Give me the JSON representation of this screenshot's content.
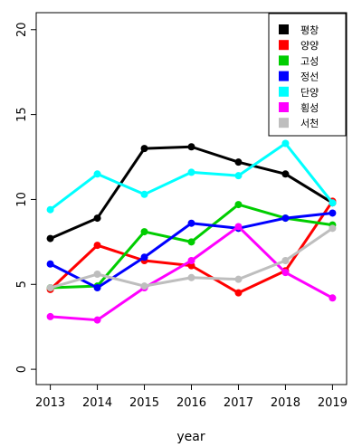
{
  "chart_data": {
    "type": "line",
    "title": "",
    "xlabel": "year",
    "ylabel": "",
    "x": [
      2013,
      2014,
      2015,
      2016,
      2017,
      2018,
      2019
    ],
    "xlim": [
      2012.7,
      2019.3
    ],
    "ylim": [
      -0.9,
      21.0
    ],
    "yticks": [
      0,
      5,
      10,
      15,
      20
    ],
    "grid": false,
    "legend_position": "top-right",
    "series": [
      {
        "name": "평창",
        "color": "#000000",
        "values": [
          7.7,
          8.9,
          13.0,
          13.1,
          12.2,
          11.5,
          9.8
        ]
      },
      {
        "name": "양양",
        "color": "#ff0000",
        "values": [
          4.7,
          7.3,
          6.4,
          6.1,
          4.5,
          5.8,
          9.9
        ]
      },
      {
        "name": "고성",
        "color": "#00cd00",
        "values": [
          4.8,
          4.9,
          8.1,
          7.5,
          9.7,
          8.9,
          8.5
        ]
      },
      {
        "name": "정선",
        "color": "#0000ff",
        "values": [
          6.2,
          4.8,
          6.6,
          8.6,
          8.3,
          8.9,
          9.2
        ]
      },
      {
        "name": "단양",
        "color": "#00ffff",
        "values": [
          9.4,
          11.5,
          10.3,
          11.6,
          11.4,
          13.3,
          9.8
        ]
      },
      {
        "name": "횡성",
        "color": "#ff00ff",
        "values": [
          3.1,
          2.9,
          4.8,
          6.4,
          8.4,
          5.7,
          4.2
        ]
      },
      {
        "name": "서천",
        "color": "#bebebe",
        "values": [
          4.8,
          5.6,
          4.9,
          5.4,
          5.3,
          6.4,
          8.3
        ]
      }
    ]
  }
}
